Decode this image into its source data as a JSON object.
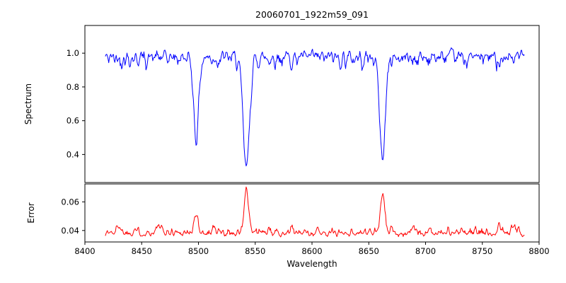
{
  "figure": {
    "title": "20060701_1922m59_091",
    "background": "#ffffff"
  },
  "chart_data": {
    "type": "line",
    "title": "20060701_1922m59_091",
    "xlabel": "Wavelength",
    "xlim": [
      8400,
      8800
    ],
    "x_start": 8418,
    "x_end": 8787,
    "x_ticks": [
      8400,
      8450,
      8500,
      8550,
      8600,
      8650,
      8700,
      8750,
      8800
    ],
    "x_tick_labels": [
      "8400",
      "8450",
      "8500",
      "8550",
      "8600",
      "8650",
      "8700",
      "8750",
      "8800"
    ],
    "grid": false,
    "legend": "none",
    "panels": [
      {
        "name": "spectrum",
        "ylabel": "Spectrum",
        "line_color": "#0000ff",
        "ylim": [
          0.234,
          1.164
        ],
        "y_ticks": [
          0.4,
          0.6,
          0.8,
          1.0
        ],
        "y_tick_labels": [
          "0.4",
          "0.6",
          "0.8",
          "1.0"
        ],
        "continuum_level": 0.975,
        "noise_amplitude": 0.12,
        "noise_skew_direction": "down",
        "noise_skew_factor": 1.5,
        "absorption_lines": [
          {
            "center": 8498.0,
            "depth": 0.47,
            "sigma": 2.2
          },
          {
            "center": 8542.1,
            "depth": 0.66,
            "sigma": 2.8
          },
          {
            "center": 8662.1,
            "depth": 0.59,
            "sigma": 2.5
          }
        ]
      },
      {
        "name": "error",
        "ylabel": "Error",
        "line_color": "#ff0000",
        "ylim": [
          0.032,
          0.0725
        ],
        "y_ticks": [
          0.04,
          0.06
        ],
        "y_tick_labels": [
          "0.04",
          "0.06"
        ],
        "baseline_level": 0.0385,
        "noise_amplitude": 0.007,
        "noise_skew_direction": "up",
        "noise_skew_factor": 1.6,
        "spikes": [
          {
            "center": 8430.0,
            "height": 0.0055,
            "sigma": 1.5
          },
          {
            "center": 8444.0,
            "height": 0.003,
            "sigma": 1.2
          },
          {
            "center": 8465.0,
            "height": 0.0045,
            "sigma": 1.5
          },
          {
            "center": 8498.0,
            "height": 0.0115,
            "sigma": 1.8
          },
          {
            "center": 8513.0,
            "height": 0.004,
            "sigma": 1.2
          },
          {
            "center": 8542.1,
            "height": 0.0305,
            "sigma": 1.8
          },
          {
            "center": 8582.0,
            "height": 0.003,
            "sigma": 1.2
          },
          {
            "center": 8662.1,
            "height": 0.0265,
            "sigma": 1.8
          },
          {
            "center": 8688.0,
            "height": 0.003,
            "sigma": 1.2
          },
          {
            "center": 8765.0,
            "height": 0.0055,
            "sigma": 1.5
          },
          {
            "center": 8778.0,
            "height": 0.005,
            "sigma": 1.3
          }
        ]
      }
    ]
  }
}
